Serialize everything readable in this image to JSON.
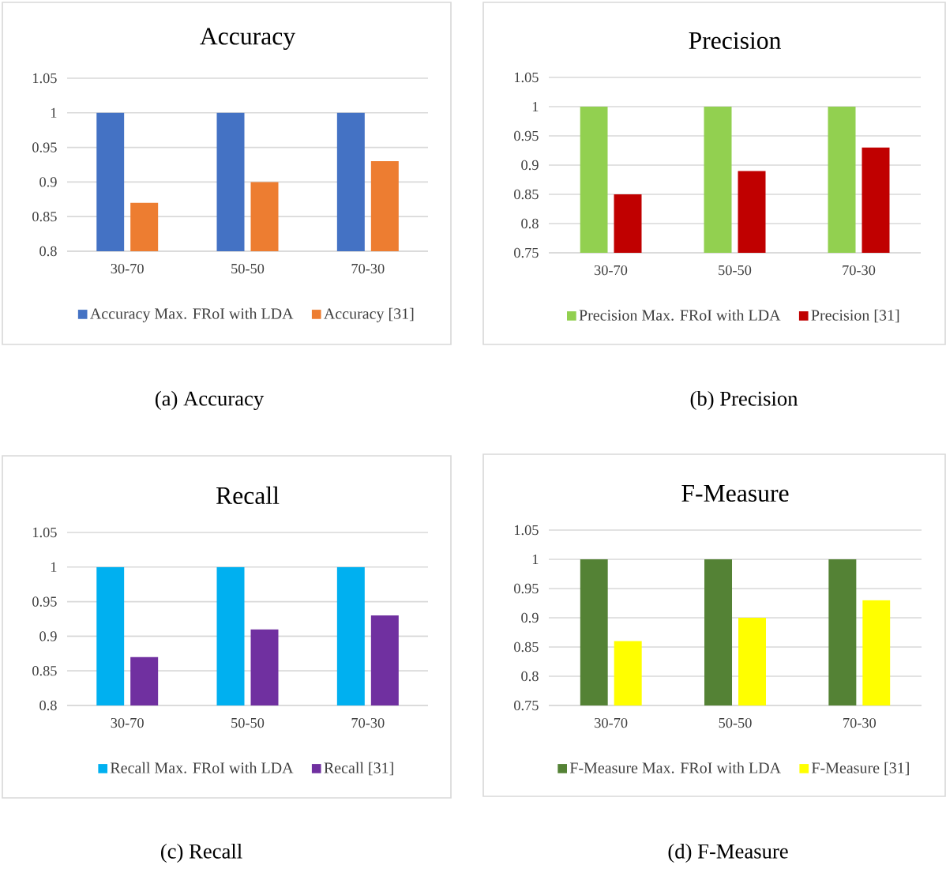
{
  "chart_data": [
    {
      "type": "bar",
      "title": "Accuracy",
      "categories": [
        "30-70",
        "50-50",
        "70-30"
      ],
      "series": [
        {
          "name": "Accuracy Max. FRoI with LDA",
          "color": "#4472c4",
          "values": [
            1,
            1,
            1
          ]
        },
        {
          "name": "Accuracy [31]",
          "color": "#ed7d31",
          "values": [
            0.87,
            0.9,
            0.93
          ]
        }
      ],
      "ylim": [
        0.8,
        1.05
      ],
      "yticks": [
        0.8,
        0.85,
        0.9,
        0.95,
        1,
        1.05
      ],
      "grid": "y",
      "legend": "bottom",
      "annotations": [
        "(a) Accuracy"
      ]
    },
    {
      "type": "bar",
      "title": "Precision",
      "categories": [
        "30-70",
        "50-50",
        "70-30"
      ],
      "series": [
        {
          "name": "Precision Max. FRoI with LDA",
          "color": "#92d050",
          "values": [
            1,
            1,
            1
          ]
        },
        {
          "name": "Precision [31]",
          "color": "#c00000",
          "values": [
            0.85,
            0.89,
            0.93
          ]
        }
      ],
      "ylim": [
        0.75,
        1.05
      ],
      "yticks": [
        0.75,
        0.8,
        0.85,
        0.9,
        0.95,
        1,
        1.05
      ],
      "grid": "y",
      "legend": "bottom",
      "annotations": [
        "(b) Precision"
      ]
    },
    {
      "type": "bar",
      "title": "Recall",
      "categories": [
        "30-70",
        "50-50",
        "70-30"
      ],
      "series": [
        {
          "name": "Recall Max. FRoI with LDA",
          "color": "#00b0f0",
          "values": [
            1,
            1,
            1
          ]
        },
        {
          "name": "Recall [31]",
          "color": "#7030a0",
          "values": [
            0.87,
            0.91,
            0.93
          ]
        }
      ],
      "ylim": [
        0.8,
        1.05
      ],
      "yticks": [
        0.8,
        0.85,
        0.9,
        0.95,
        1,
        1.05
      ],
      "grid": "y",
      "legend": "bottom",
      "annotations": [
        "(c) Recall"
      ]
    },
    {
      "type": "bar",
      "title": "F-Measure",
      "categories": [
        "30-70",
        "50-50",
        "70-30"
      ],
      "series": [
        {
          "name": "F-Measure Max. FRoI with LDA",
          "color": "#548235",
          "values": [
            1,
            1,
            1
          ]
        },
        {
          "name": "F-Measure [31]",
          "color": "#ffff00",
          "values": [
            0.86,
            0.9,
            0.93
          ]
        }
      ],
      "ylim": [
        0.75,
        1.05
      ],
      "yticks": [
        0.75,
        0.8,
        0.85,
        0.9,
        0.95,
        1,
        1.05
      ],
      "grid": "y",
      "legend": "bottom",
      "annotations": [
        "(d) F-Measure"
      ]
    }
  ]
}
